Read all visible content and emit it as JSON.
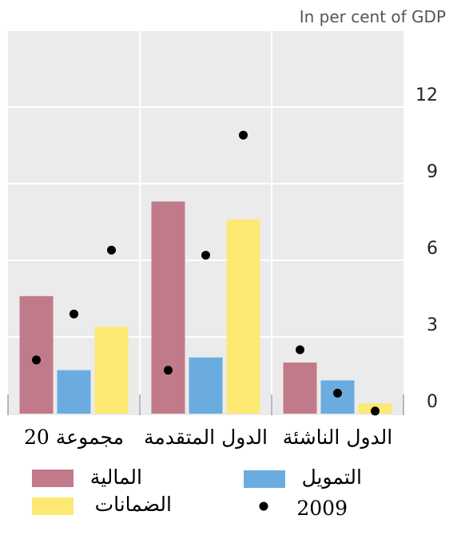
{
  "chart_data": {
    "type": "bar",
    "unit_label": "In per cent of GDP",
    "categories": [
      "مجموعة 20",
      "الدول المتقدمة",
      "الدول الناشئة"
    ],
    "series": [
      {
        "name": "المالية",
        "color": "#c17a8a",
        "values": [
          4.6,
          8.3,
          2.0
        ]
      },
      {
        "name": "التمويل",
        "color": "#6aacdf",
        "values": [
          1.7,
          2.2,
          1.3
        ]
      },
      {
        "name": "الضمانات",
        "color": "#fde874",
        "values": [
          3.4,
          7.6,
          0.4
        ]
      }
    ],
    "points": {
      "name": "2009",
      "color": "#000000",
      "values": [
        [
          2.1,
          3.9,
          6.4
        ],
        [
          1.7,
          6.2,
          10.9
        ],
        [
          2.5,
          0.8,
          0.1
        ]
      ]
    },
    "ylim": [
      0,
      15
    ],
    "yticks": [
      0,
      3,
      6,
      9,
      12
    ],
    "grid": true,
    "legend_position": "bottom"
  }
}
